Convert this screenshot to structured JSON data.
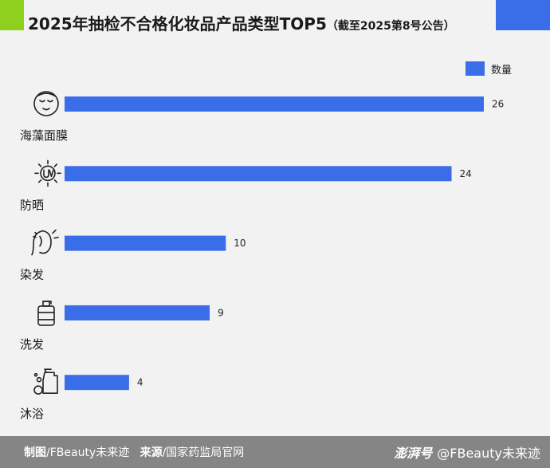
{
  "header": {
    "title": "2025年抽检不合格化妆品产品类型TOP5",
    "subtitle": "（截至2025第8号公告）",
    "accent_left_color": "#8fd01f",
    "accent_right_color": "#3a6ee8"
  },
  "chart_data": {
    "type": "bar",
    "orientation": "horizontal",
    "title": "2025年抽检不合格化妆品产品类型TOP5（截至2025第8号公告）",
    "categories": [
      "海藻面膜",
      "防晒",
      "染发",
      "洗发",
      "沐浴"
    ],
    "icons": [
      "face-mask-icon",
      "uv-sun-icon",
      "hair-dye-icon",
      "shampoo-bottle-icon",
      "body-wash-icon"
    ],
    "series": [
      {
        "name": "数量",
        "values": [
          26,
          24,
          10,
          9,
          4
        ],
        "color": "#3a6ee8"
      }
    ],
    "xlim": [
      0,
      26
    ],
    "grid": false,
    "legend_position": "top-right"
  },
  "legend": {
    "label": "数量"
  },
  "footer": {
    "maker_label": "制图",
    "maker": "/FBeauty未来迹",
    "source_label": "来源",
    "source": "/国家药监局官网",
    "brand_logo": "澎湃号",
    "brand_handle": "@FBeauty未来迹"
  }
}
